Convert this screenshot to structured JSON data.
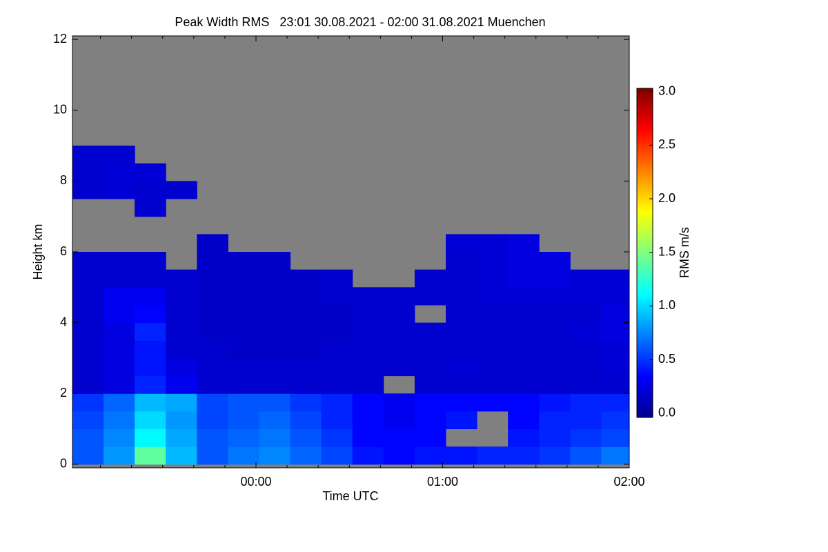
{
  "chart_data": {
    "type": "heatmap",
    "title": "Peak Width RMS   23:01 30.08.2021 - 02:00 31.08.2021 Muenchen",
    "x_label": "Time UTC",
    "y_label": "Height km",
    "colorbar_label": "RMS m/s",
    "x_bins": [
      "23:01",
      "23:11",
      "23:21",
      "23:31",
      "23:41",
      "23:51",
      "00:01",
      "00:11",
      "00:21",
      "00:31",
      "00:41",
      "00:51",
      "01:01",
      "01:11",
      "01:21",
      "01:31",
      "01:41",
      "01:51",
      "02:00"
    ],
    "y_bins": [
      0,
      0.5,
      1,
      1.5,
      2,
      2.5,
      3,
      3.5,
      4,
      4.5,
      5,
      5.5,
      6,
      6.5,
      7,
      7.5,
      8,
      8.5,
      9
    ],
    "xlim": [
      "23:01",
      "02:00"
    ],
    "xticks": [
      "00:00",
      "01:00",
      "02:00"
    ],
    "xminorticks": [
      "23:10",
      "23:20",
      "23:30",
      "23:40",
      "23:50",
      "00:10",
      "00:20",
      "00:30",
      "00:40",
      "00:50",
      "01:10",
      "01:20",
      "01:30",
      "01:40",
      "01:50"
    ],
    "ylim": [
      -0.1,
      12.1
    ],
    "yticks": [
      0,
      2,
      4,
      6,
      8,
      10,
      12
    ],
    "clim": [
      -0.04,
      3.03
    ],
    "cticks": [
      {
        "value": 0,
        "label": "0.0"
      },
      {
        "value": 0.5,
        "label": "0.5"
      },
      {
        "value": 1,
        "label": "1.0"
      },
      {
        "value": 1.5,
        "label": "1.5"
      },
      {
        "value": 2,
        "label": "2.0"
      },
      {
        "value": 2.5,
        "label": "2.5"
      },
      {
        "value": 3,
        "label": "3.0"
      }
    ],
    "colormap": "jet",
    "missing_color": "#808080",
    "z": [
      [
        0.6,
        0.8,
        1.4,
        0.9,
        0.6,
        0.7,
        0.75,
        0.65,
        0.55,
        0.4,
        0.35,
        0.4,
        0.4,
        0.45,
        0.45,
        0.5,
        0.6,
        0.7
      ],
      [
        0.6,
        0.75,
        1.1,
        0.85,
        0.6,
        0.65,
        0.7,
        0.6,
        0.5,
        0.35,
        0.35,
        0.35,
        null,
        null,
        0.4,
        0.45,
        0.5,
        0.55
      ],
      [
        0.55,
        0.7,
        1.0,
        0.8,
        0.55,
        0.6,
        0.65,
        0.55,
        0.45,
        0.35,
        0.3,
        0.35,
        0.4,
        null,
        0.35,
        0.45,
        0.45,
        0.5
      ],
      [
        0.5,
        0.65,
        0.9,
        0.85,
        0.55,
        0.6,
        0.6,
        0.5,
        0.45,
        0.35,
        0.3,
        0.35,
        0.35,
        0.35,
        0.35,
        0.4,
        0.45,
        0.45
      ],
      [
        0.2,
        0.25,
        0.45,
        0.3,
        0.2,
        0.2,
        0.2,
        0.2,
        0.2,
        0.2,
        null,
        0.2,
        0.2,
        0.2,
        0.2,
        0.2,
        0.2,
        0.2
      ],
      [
        0.2,
        0.25,
        0.4,
        0.25,
        0.2,
        0.2,
        0.2,
        0.2,
        0.2,
        0.2,
        0.2,
        0.2,
        0.22,
        0.2,
        0.2,
        0.2,
        0.2,
        0.22
      ],
      [
        0.2,
        0.25,
        0.4,
        0.2,
        0.2,
        0.18,
        0.18,
        0.18,
        0.2,
        0.2,
        0.2,
        0.2,
        0.2,
        0.2,
        0.2,
        0.2,
        0.2,
        0.22
      ],
      [
        0.2,
        0.25,
        0.45,
        0.2,
        0.18,
        0.18,
        0.18,
        0.18,
        0.18,
        0.2,
        0.2,
        0.2,
        0.2,
        0.2,
        0.2,
        0.2,
        0.22,
        0.25
      ],
      [
        0.2,
        0.3,
        0.35,
        0.2,
        0.18,
        0.18,
        0.18,
        0.18,
        0.18,
        0.2,
        0.2,
        null,
        0.2,
        0.2,
        0.2,
        0.2,
        0.2,
        0.25
      ],
      [
        0.2,
        0.3,
        0.3,
        0.2,
        0.18,
        0.18,
        0.18,
        0.18,
        0.2,
        0.2,
        0.2,
        0.2,
        0.2,
        0.22,
        0.22,
        0.22,
        0.22,
        0.22
      ],
      [
        0.2,
        0.2,
        0.2,
        0.2,
        0.18,
        0.18,
        0.18,
        0.18,
        0.2,
        null,
        null,
        0.2,
        0.2,
        0.22,
        0.25,
        0.25,
        0.22,
        0.22
      ],
      [
        0.2,
        0.2,
        0.2,
        null,
        0.18,
        0.18,
        0.18,
        null,
        null,
        null,
        null,
        null,
        0.2,
        0.22,
        0.25,
        0.25,
        null,
        null
      ],
      [
        null,
        null,
        null,
        null,
        0.18,
        null,
        null,
        null,
        null,
        null,
        null,
        null,
        0.22,
        0.22,
        0.25,
        null,
        null,
        null
      ],
      [
        null,
        null,
        null,
        null,
        null,
        null,
        null,
        null,
        null,
        null,
        null,
        null,
        null,
        null,
        null,
        null,
        null,
        null
      ],
      [
        null,
        null,
        0.2,
        null,
        null,
        null,
        null,
        null,
        null,
        null,
        null,
        null,
        null,
        null,
        null,
        null,
        null,
        null
      ],
      [
        0.2,
        0.22,
        0.2,
        0.2,
        null,
        null,
        null,
        null,
        null,
        null,
        null,
        null,
        null,
        null,
        null,
        null,
        null,
        null
      ],
      [
        0.2,
        0.22,
        0.22,
        null,
        null,
        null,
        null,
        null,
        null,
        null,
        null,
        null,
        null,
        null,
        null,
        null,
        null,
        null
      ],
      [
        0.2,
        0.2,
        null,
        null,
        null,
        null,
        null,
        null,
        null,
        null,
        null,
        null,
        null,
        null,
        null,
        null,
        null,
        null
      ]
    ]
  }
}
